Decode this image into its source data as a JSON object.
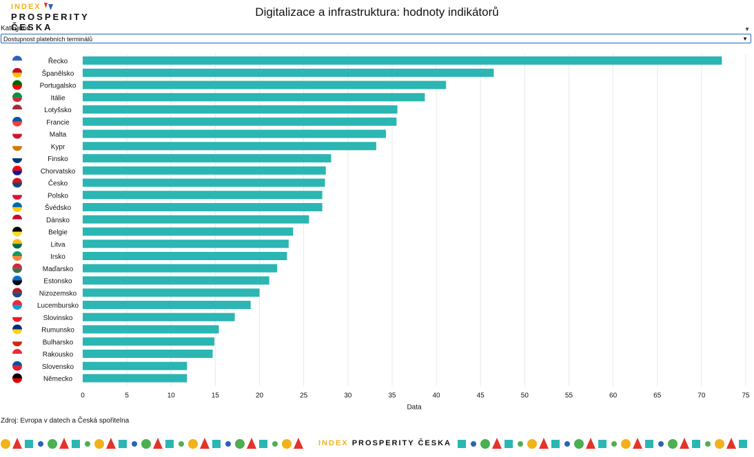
{
  "logo": {
    "line1": "INDEX",
    "line2": "PROSPERITY ČESKA"
  },
  "title": "Digitalizace a infrastruktura: hodnoty indikátorů",
  "category": {
    "label": "Kategorie",
    "selected": "Dostupnost platebních terminálů"
  },
  "source": "Zdroj: Evropa v datech a Česká spořitelna",
  "footer_logo": {
    "index": "INDEX",
    "prosperity": "PROSPERITY ČESKA"
  },
  "colors": {
    "bar": "#2bb6b3",
    "accent_yellow": "#f2b21a",
    "accent_red": "#e5332a",
    "accent_blue": "#2a63b8"
  },
  "chart_data": {
    "type": "bar",
    "orientation": "horizontal",
    "xlabel": "Data",
    "xlim": [
      0,
      75
    ],
    "xticks": [
      0,
      5,
      10,
      15,
      20,
      25,
      30,
      35,
      40,
      45,
      50,
      55,
      60,
      65,
      70,
      75
    ],
    "grid": true,
    "categories": [
      "Řecko",
      "Španělsko",
      "Portugalsko",
      "Itálie",
      "Lotyšsko",
      "Francie",
      "Malta",
      "Kypr",
      "Finsko",
      "Chorvatsko",
      "Česko",
      "Polsko",
      "Švédsko",
      "Dánsko",
      "Belgie",
      "Litva",
      "Irsko",
      "Maďarsko",
      "Estonsko",
      "Nizozemsko",
      "Lucembursko",
      "Slovinsko",
      "Rumunsko",
      "Bulharsko",
      "Rakousko",
      "Slovensko",
      "Německo"
    ],
    "values": [
      72.3,
      46.5,
      41.1,
      38.7,
      35.6,
      35.5,
      34.3,
      33.2,
      28.1,
      27.5,
      27.4,
      27.1,
      27.1,
      25.6,
      23.8,
      23.3,
      23.1,
      22.0,
      21.1,
      20.0,
      19.0,
      17.2,
      15.4,
      14.9,
      14.7,
      11.8,
      11.8
    ],
    "flag_icons": [
      "greece-flag-icon",
      "spain-flag-icon",
      "portugal-flag-icon",
      "italy-flag-icon",
      "latvia-flag-icon",
      "france-flag-icon",
      "malta-flag-icon",
      "cyprus-flag-icon",
      "finland-flag-icon",
      "croatia-flag-icon",
      "czechia-flag-icon",
      "poland-flag-icon",
      "sweden-flag-icon",
      "denmark-flag-icon",
      "belgium-flag-icon",
      "lithuania-flag-icon",
      "ireland-flag-icon",
      "hungary-flag-icon",
      "estonia-flag-icon",
      "netherlands-flag-icon",
      "luxembourg-flag-icon",
      "slovenia-flag-icon",
      "romania-flag-icon",
      "bulgaria-flag-icon",
      "austria-flag-icon",
      "slovakia-flag-icon",
      "germany-flag-icon"
    ]
  }
}
